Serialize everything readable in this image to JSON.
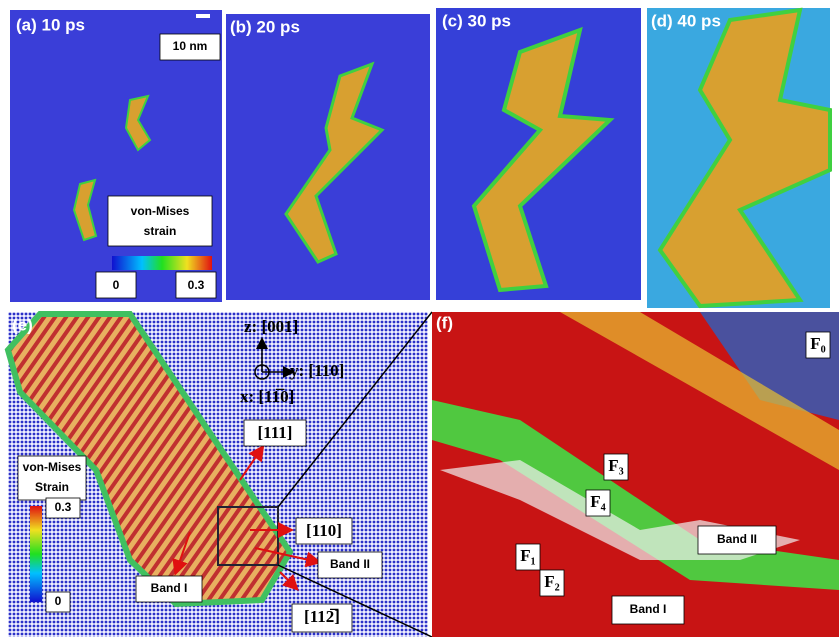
{
  "panels": [
    {
      "label": "(a) 10 ps"
    },
    {
      "label": "(b) 20 ps"
    },
    {
      "label": "(c) 30 ps"
    },
    {
      "label": "(d) 40 ps"
    }
  ],
  "scale_bar": "10 nm",
  "colorbar_top": {
    "title": [
      "von-Mises",
      "strain"
    ],
    "min": "0",
    "max": "0.3"
  },
  "panel_e": {
    "label": "(e)",
    "axes": [
      "z: [001]",
      "y: [110]",
      "x: [11̅0]"
    ],
    "directions": [
      "[111]",
      "[110]",
      "[112̅]"
    ],
    "bands": [
      "Band I",
      "Band II"
    ],
    "colorbar": {
      "title": [
        "von-Mises",
        "Strain"
      ],
      "max": "0.3",
      "min": "0"
    }
  },
  "panel_f": {
    "label": "(f)",
    "planes": [
      "F₀",
      "F₃",
      "F₄",
      "F₁",
      "F₂"
    ],
    "bands": [
      "Band II",
      "Band I"
    ]
  }
}
